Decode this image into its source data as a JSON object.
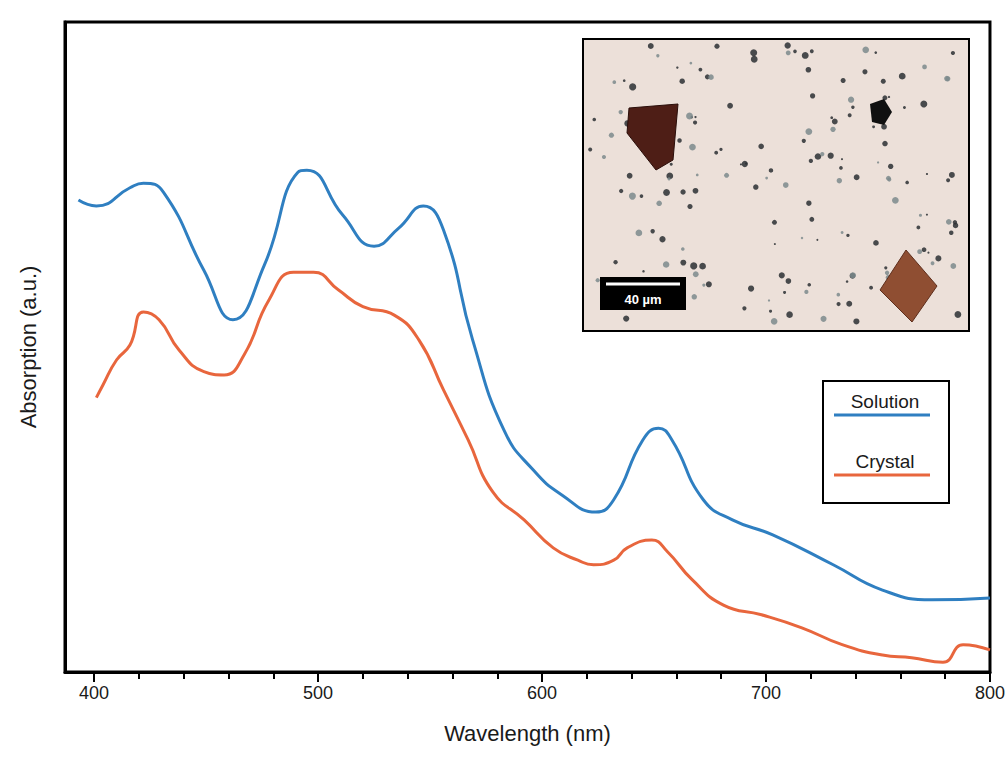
{
  "chart_data": {
    "type": "line",
    "x_label": "Wavelength (nm)",
    "y_label": "Absorption (a.u.)",
    "xlim": [
      387,
      800
    ],
    "xticks": [
      400,
      500,
      600,
      700,
      800
    ],
    "ylim": [
      0,
      100
    ],
    "tick_labels": "x",
    "grid": false,
    "legend": "right",
    "series": [
      {
        "name": "Solution",
        "color": "#2f7fc1",
        "x": [
          393,
          401,
          416,
          422,
          431,
          449,
          462,
          476,
          491,
          495,
          511,
          525,
          536,
          547,
          556,
          569,
          583,
          596,
          609,
          624,
          632,
          645,
          652,
          658,
          672,
          685,
          703,
          730,
          752,
          774,
          800
        ],
        "values": [
          72.6,
          71.7,
          74.5,
          75.2,
          73.8,
          61.8,
          54.2,
          62.6,
          76.9,
          77.2,
          70.3,
          65.5,
          68.3,
          71.7,
          68.0,
          51.1,
          37.2,
          31.1,
          27.2,
          24.6,
          26.5,
          35.7,
          37.5,
          35.7,
          26.5,
          23.4,
          21.1,
          16.5,
          12.6,
          11.1,
          11.4
        ]
      },
      {
        "name": "Crystal",
        "color": "#e8663d",
        "x": [
          401,
          404,
          410,
          416,
          422,
          429,
          438,
          449,
          458,
          467,
          478,
          489,
          498,
          509,
          520,
          534,
          545,
          556,
          567,
          578,
          592,
          605,
          616,
          623,
          632,
          638,
          649,
          656,
          667,
          681,
          698,
          716,
          734,
          752,
          765,
          779,
          788,
          800
        ],
        "values": [
          42.2,
          44.2,
          48.0,
          50.3,
          55.4,
          54.2,
          49.5,
          46.2,
          45.7,
          48.8,
          57.2,
          61.5,
          61.5,
          58.8,
          56.2,
          54.9,
          51.1,
          43.4,
          35.7,
          27.7,
          23.4,
          19.1,
          17.2,
          16.5,
          17.2,
          19.1,
          20.3,
          18.5,
          14.2,
          10.3,
          8.8,
          6.8,
          4.2,
          2.6,
          2.2,
          1.5,
          4.2,
          3.4
        ]
      }
    ],
    "inset": {
      "scale_bar_label": "40 µm"
    }
  }
}
